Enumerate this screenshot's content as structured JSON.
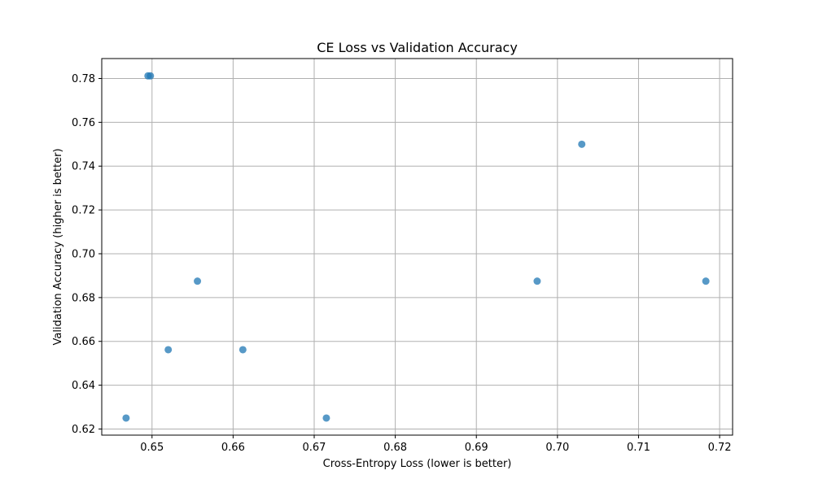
{
  "chart_data": {
    "type": "scatter",
    "title": "CE Loss vs Validation Accuracy",
    "xlabel": "Cross-Entropy Loss (lower is better)",
    "ylabel": "Validation Accuracy (higher is better)",
    "xlim": [
      0.6438,
      0.7216
    ],
    "ylim": [
      0.6172,
      0.7891
    ],
    "xticks": [
      "0.65",
      "0.66",
      "0.67",
      "0.68",
      "0.69",
      "0.70",
      "0.71",
      "0.72"
    ],
    "xtick_values": [
      0.65,
      0.66,
      0.67,
      0.68,
      0.69,
      0.7,
      0.71,
      0.72
    ],
    "yticks": [
      "0.62",
      "0.64",
      "0.66",
      "0.68",
      "0.70",
      "0.72",
      "0.74",
      "0.76",
      "0.78"
    ],
    "ytick_values": [
      0.62,
      0.64,
      0.66,
      0.68,
      0.7,
      0.72,
      0.74,
      0.76,
      0.78
    ],
    "grid": true,
    "point_color": "#1f77b4",
    "points": [
      {
        "x": 0.6495,
        "y": 0.7812
      },
      {
        "x": 0.6498,
        "y": 0.7812
      },
      {
        "x": 0.703,
        "y": 0.75
      },
      {
        "x": 0.6556,
        "y": 0.6875
      },
      {
        "x": 0.6975,
        "y": 0.6875
      },
      {
        "x": 0.7183,
        "y": 0.6875
      },
      {
        "x": 0.652,
        "y": 0.6562
      },
      {
        "x": 0.6612,
        "y": 0.6562
      },
      {
        "x": 0.6468,
        "y": 0.625
      },
      {
        "x": 0.6715,
        "y": 0.625
      }
    ]
  }
}
